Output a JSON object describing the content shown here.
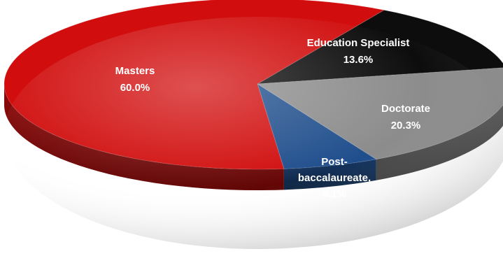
{
  "chart_data": {
    "type": "pie",
    "style": "3d-tilted",
    "title": "",
    "slices": [
      {
        "label": "Education Specialist",
        "value": 13.6,
        "value_label": "13.6%",
        "color": "#0d0d0d"
      },
      {
        "label": "Doctorate",
        "value": 20.3,
        "value_label": "20.3%",
        "color": "#8c8c8c"
      },
      {
        "label": "Post-baccalaureate,",
        "value": 6.1,
        "value_label": "6.1%",
        "color": "#1f4e8c"
      },
      {
        "label": "Masters",
        "value": 60.0,
        "value_label": "60.0%",
        "color": "#d10d0d"
      }
    ],
    "label_text": {
      "post_line1": "Post-",
      "post_line2": "baccalaureate,"
    }
  }
}
